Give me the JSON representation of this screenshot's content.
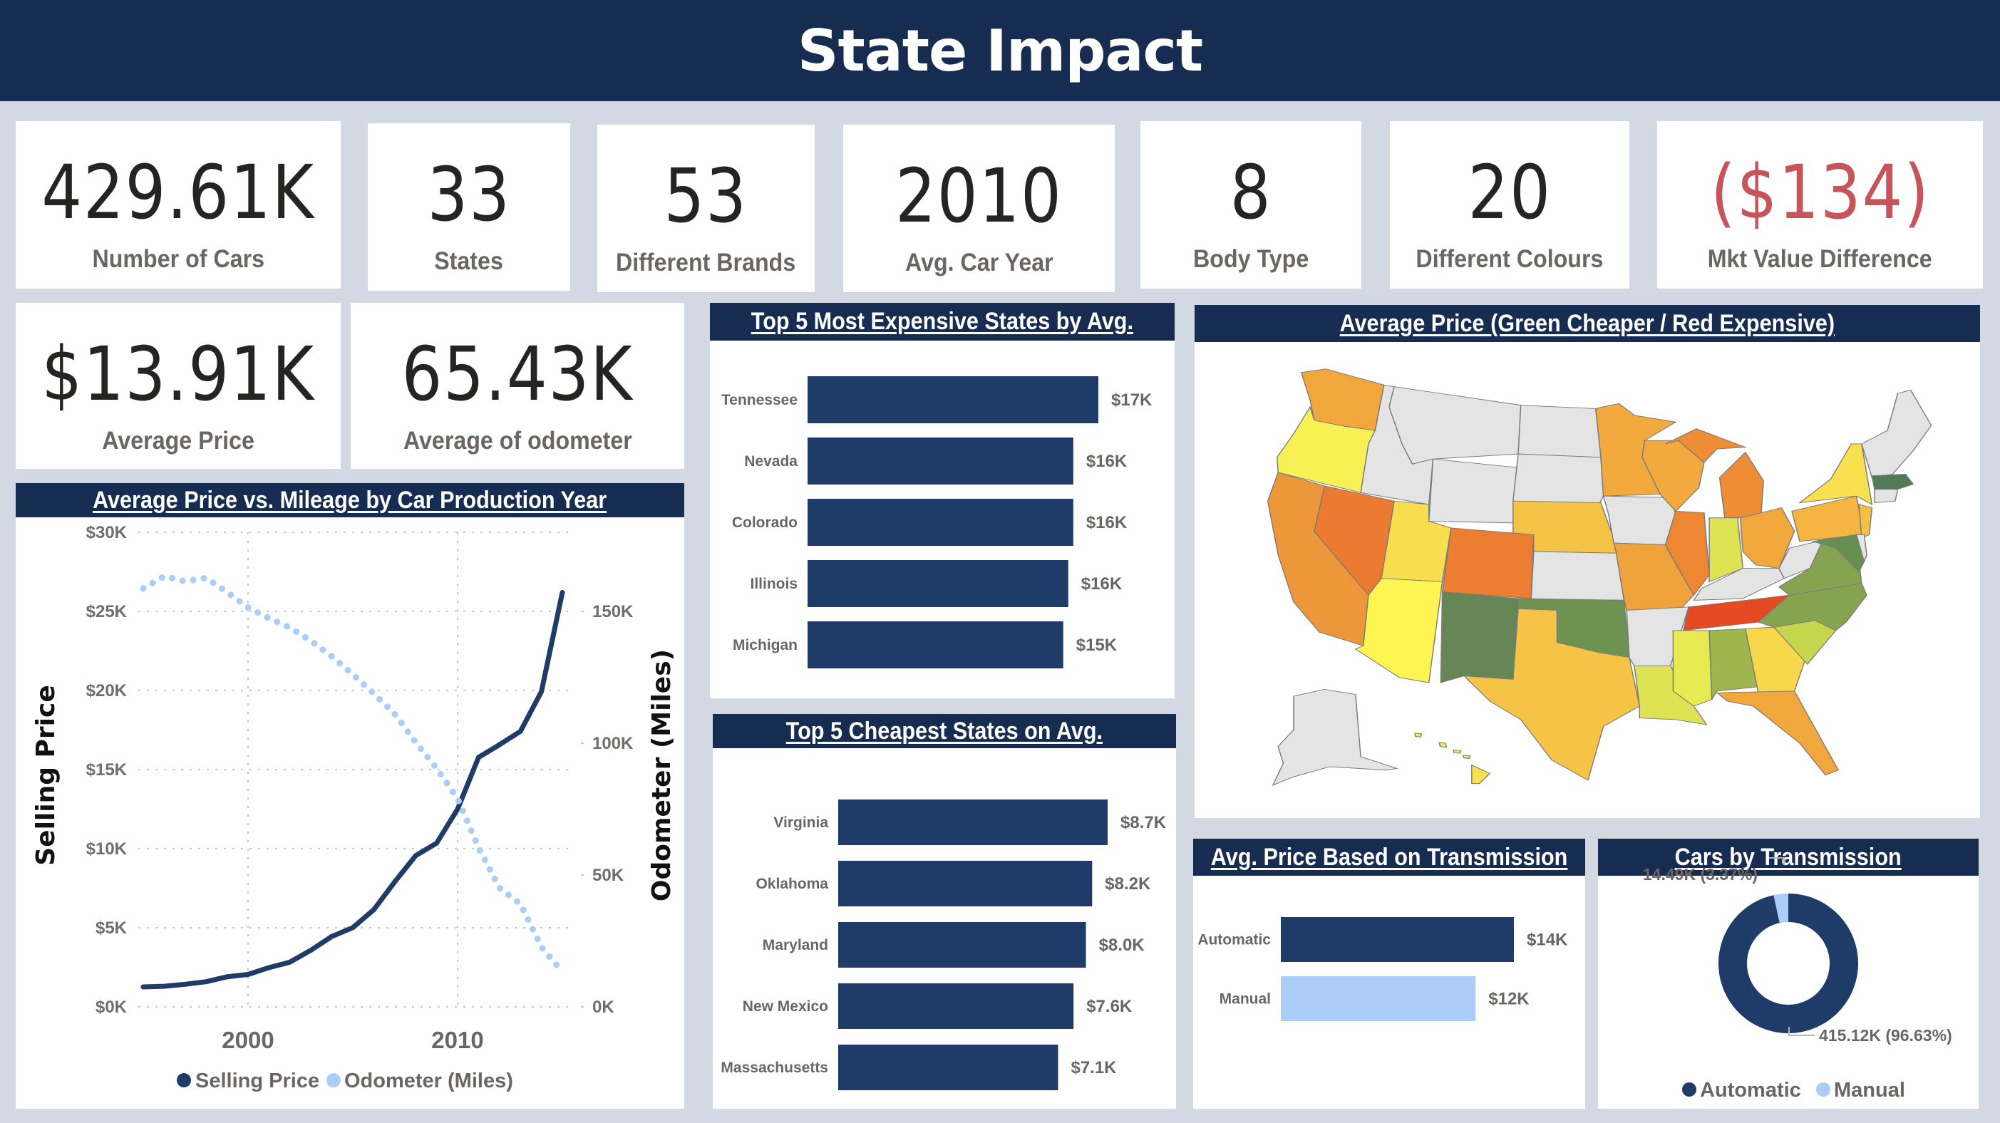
{
  "header": {
    "title": "State Impact"
  },
  "kpis": [
    {
      "value": "429.61K",
      "label": "Number of Cars",
      "negative": false
    },
    {
      "value": "33",
      "label": "States",
      "negative": false
    },
    {
      "value": "53",
      "label": "Different Brands",
      "negative": false
    },
    {
      "value": "2010",
      "label": "Avg. Car Year",
      "negative": false
    },
    {
      "value": "8",
      "label": "Body Type",
      "negative": false
    },
    {
      "value": "20",
      "label": "Different Colours",
      "negative": false
    },
    {
      "value": "($134)",
      "label": "Mkt Value Difference",
      "negative": true
    },
    {
      "value": "$13.91K",
      "label": "Average Price",
      "negative": false
    },
    {
      "value": "65.43K",
      "label": "Average of odometer",
      "negative": false
    }
  ],
  "colors": {
    "navy": "#172c51",
    "bar_dark": "#1f3b68",
    "bar_light": "#abcdf7",
    "negative": "#c8545b",
    "no_data": "#e4e4e4"
  },
  "chart_data": [
    {
      "id": "price-vs-mileage",
      "type": "line",
      "title": "Average Price vs. Mileage by Car Production Year",
      "xlabel": "",
      "ylabel": "Selling Price",
      "y2label": "Odometer (Miles)",
      "x": [
        1995,
        1996,
        1997,
        1998,
        1999,
        2000,
        2001,
        2002,
        2003,
        2004,
        2005,
        2006,
        2007,
        2008,
        2009,
        2010,
        2011,
        2012,
        2013,
        2014,
        2015
      ],
      "xticks": [
        2000,
        2010
      ],
      "xlim": [
        1993.8,
        2016.6
      ],
      "ylim": [
        0,
        30000
      ],
      "yticks": [
        0,
        5000,
        10000,
        15000,
        20000,
        25000,
        30000
      ],
      "ytick_labels": [
        "$0K",
        "$5K",
        "$10K",
        "$15K",
        "$20K",
        "$25K",
        "$30K"
      ],
      "y2lim": [
        0,
        180000
      ],
      "y2ticks": [
        0,
        50000,
        100000,
        150000
      ],
      "y2tick_labels": [
        "0K",
        "50K",
        "100K",
        "150K"
      ],
      "grid": true,
      "legend": "bottom-center",
      "series": [
        {
          "name": "Selling Price",
          "axis": "left",
          "style": "solid",
          "color": "#1f3b68",
          "values": [
            1260,
            1300,
            1430,
            1590,
            1900,
            2050,
            2480,
            2830,
            3580,
            4450,
            5010,
            6140,
            7900,
            9560,
            10350,
            12500,
            15770,
            16570,
            17420,
            19930,
            26200
          ]
        },
        {
          "name": "Odometer (Miles)",
          "axis": "right",
          "style": "dotted",
          "color": "#abcdf7",
          "values": [
            158700,
            163300,
            161400,
            162700,
            157300,
            151500,
            147400,
            143800,
            138800,
            132900,
            126100,
            118800,
            111100,
            100300,
            90500,
            79000,
            60300,
            45100,
            39000,
            22700,
            13300
          ]
        }
      ]
    },
    {
      "id": "top5-expensive",
      "type": "bar",
      "orientation": "horizontal",
      "title": "Top 5 Most Expensive States by Avg.",
      "categories": [
        "Tennessee",
        "Nevada",
        "Colorado",
        "Illinois",
        "Michigan"
      ],
      "values": [
        17400,
        15900,
        15900,
        15600,
        15300
      ],
      "data_labels": [
        "$17K",
        "$16K",
        "$16K",
        "$16K",
        "$15K"
      ],
      "xlim": [
        0,
        17400
      ]
    },
    {
      "id": "top5-cheapest",
      "type": "bar",
      "orientation": "horizontal",
      "title": "Top 5 Cheapest States on Avg.",
      "categories": [
        "Virginia",
        "Oklahoma",
        "Maryland",
        "New Mexico",
        "Massachusetts"
      ],
      "values": [
        8700,
        8200,
        8000,
        7600,
        7100
      ],
      "data_labels": [
        "$8.7K",
        "$8.2K",
        "$8.0K",
        "$7.6K",
        "$7.1K"
      ],
      "xlim": [
        0,
        8700
      ]
    },
    {
      "id": "avg-price-transmission",
      "type": "bar",
      "orientation": "horizontal",
      "title": "Avg. Price Based on Transmission",
      "categories": [
        "Automatic",
        "Manual"
      ],
      "values": [
        14000,
        11700
      ],
      "data_labels": [
        "$14K",
        "$12K"
      ],
      "colors": [
        "#1f3b68",
        "#abcdf7"
      ],
      "xlim": [
        0,
        14000
      ]
    },
    {
      "id": "cars-by-transmission",
      "type": "pie",
      "variant": "donut",
      "title": "Cars by Transmission",
      "categories": [
        "Automatic",
        "Manual"
      ],
      "values": [
        415120,
        14490
      ],
      "percents": [
        96.63,
        3.37
      ],
      "data_labels": [
        "415.12K (96.63%)",
        "14.49K (3.37%)"
      ],
      "colors": [
        "#1f3b68",
        "#abcdf7"
      ],
      "legend": "bottom-center"
    }
  ],
  "map": {
    "title": "Average Price (Green Cheaper / Red Expensive)",
    "states": [
      {
        "code": "WA",
        "color": "#f2a73d"
      },
      {
        "code": "OR",
        "color": "#f7f155"
      },
      {
        "code": "CA",
        "color": "#ee963a"
      },
      {
        "code": "NV",
        "color": "#ec7b31"
      },
      {
        "code": "ID",
        "color": "#e4e4e4"
      },
      {
        "code": "MT",
        "color": "#e4e4e4"
      },
      {
        "code": "WY",
        "color": "#e4e4e4"
      },
      {
        "code": "UT",
        "color": "#f8dd4d"
      },
      {
        "code": "AZ",
        "color": "#fef553"
      },
      {
        "code": "CO",
        "color": "#ec7d31"
      },
      {
        "code": "NM",
        "color": "#668755"
      },
      {
        "code": "ND",
        "color": "#e4e4e4"
      },
      {
        "code": "SD",
        "color": "#e4e4e4"
      },
      {
        "code": "NE",
        "color": "#f5c446"
      },
      {
        "code": "KS",
        "color": "#e4e4e4"
      },
      {
        "code": "OK",
        "color": "#6e9350"
      },
      {
        "code": "TX",
        "color": "#f5c446"
      },
      {
        "code": "MN",
        "color": "#f2aa3e"
      },
      {
        "code": "IA",
        "color": "#e4e4e4"
      },
      {
        "code": "MO",
        "color": "#f0a23b"
      },
      {
        "code": "AR",
        "color": "#e4e4e4"
      },
      {
        "code": "LA",
        "color": "#dee354"
      },
      {
        "code": "WI",
        "color": "#f2aa3e"
      },
      {
        "code": "IL",
        "color": "#ed8733"
      },
      {
        "code": "MI",
        "color": "#ee8d35"
      },
      {
        "code": "MI-UP",
        "color": "#ee8d35"
      },
      {
        "code": "IN",
        "color": "#dee354"
      },
      {
        "code": "OH",
        "color": "#f2a73d"
      },
      {
        "code": "KY",
        "color": "#e4e4e4"
      },
      {
        "code": "TN",
        "color": "#e64a22"
      },
      {
        "code": "MS",
        "color": "#e8ea52"
      },
      {
        "code": "AL",
        "color": "#9fb64e"
      },
      {
        "code": "GA",
        "color": "#f8d84a"
      },
      {
        "code": "FL",
        "color": "#f2a73d"
      },
      {
        "code": "SC",
        "color": "#c6d64f"
      },
      {
        "code": "NC",
        "color": "#86a44f"
      },
      {
        "code": "VA",
        "color": "#86a44f"
      },
      {
        "code": "WV",
        "color": "#e4e4e4"
      },
      {
        "code": "PA",
        "color": "#f5b540"
      },
      {
        "code": "NY",
        "color": "#f8e04f"
      },
      {
        "code": "NJ",
        "color": "#f5c043"
      },
      {
        "code": "MD",
        "color": "#678f52"
      },
      {
        "code": "DE",
        "color": "#e4e4e4"
      },
      {
        "code": "NE-NORTH",
        "color": "#e4e4e4"
      },
      {
        "code": "MA",
        "color": "#4f7b55"
      },
      {
        "code": "CT-RI",
        "color": "#e4e4e4"
      },
      {
        "code": "AK",
        "color": "#e4e4e4"
      },
      {
        "code": "HI",
        "color": "#f8e04f"
      }
    ]
  }
}
